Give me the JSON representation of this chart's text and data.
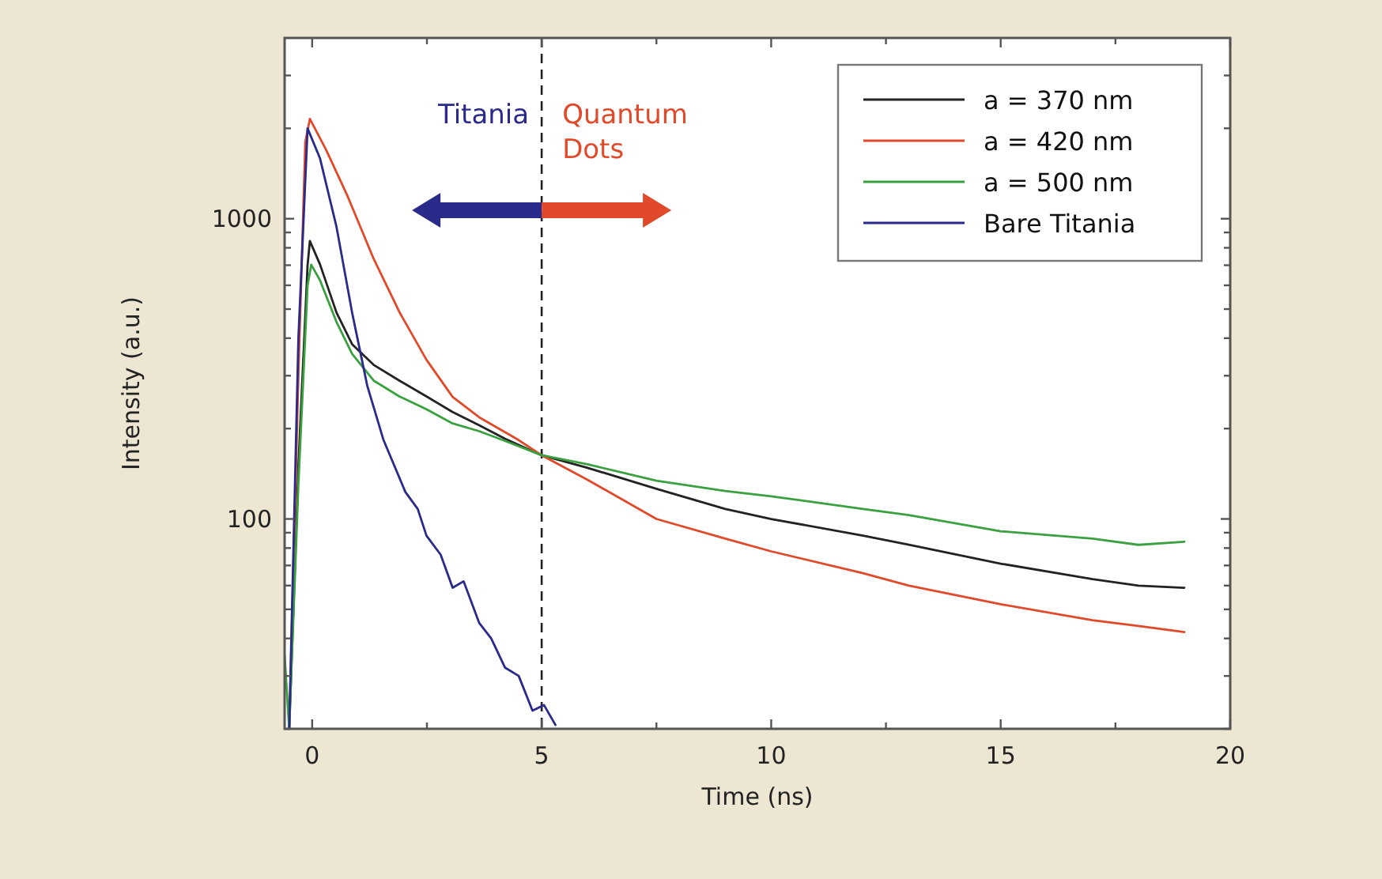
{
  "chart_data": {
    "type": "line",
    "xlabel": "Time (ns)",
    "ylabel": "Intensity (a.u.)",
    "log": "y",
    "xlim": [
      -0.6,
      20
    ],
    "ylim": [
      20,
      4000
    ],
    "xticks": [
      0,
      {
        "value": 2.5,
        "label": null
      },
      5,
      {
        "value": 7.5,
        "label": null
      },
      10,
      {
        "value": 12.5,
        "label": null
      },
      15,
      {
        "value": 17.5,
        "label": null
      },
      20
    ],
    "yticks": [
      {
        "value": 20,
        "label": null
      },
      {
        "value": 30,
        "label": null
      },
      {
        "value": 40,
        "label": null
      },
      {
        "value": 50,
        "label": null
      },
      {
        "value": 60,
        "label": null
      },
      {
        "value": 70,
        "label": null
      },
      {
        "value": 80,
        "label": null
      },
      {
        "value": 90,
        "label": null
      },
      100,
      {
        "value": 200,
        "label": null
      },
      {
        "value": 300,
        "label": null
      },
      {
        "value": 400,
        "label": null
      },
      {
        "value": 500,
        "label": null
      },
      {
        "value": 600,
        "label": null
      },
      {
        "value": 700,
        "label": null
      },
      {
        "value": 800,
        "label": null
      },
      {
        "value": 900,
        "label": null
      },
      1000,
      {
        "value": 2000,
        "label": null
      },
      {
        "value": 3000,
        "label": null
      }
    ],
    "grid": false,
    "legend": "top right",
    "marker": "none",
    "line_style": "solid",
    "ref_lines": [
      {
        "axis": "x",
        "value": 5,
        "color": "#222222",
        "line_style": "dashed"
      }
    ],
    "annotations": [
      "Titania",
      "Quantum Dots"
    ],
    "series": [
      {
        "name": "a = 370 nm",
        "color": "#222222",
        "x": [
          -0.5,
          -0.3,
          -0.1,
          -0.05,
          0.17,
          0.53,
          0.87,
          1.34,
          1.9,
          2.49,
          3.06,
          3.64,
          4.2,
          5,
          6,
          7.5,
          9,
          10,
          12,
          13,
          15,
          17,
          18,
          19
        ],
        "values": [
          20,
          150,
          700,
          843,
          705,
          487,
          382,
          326,
          289,
          256,
          227,
          205,
          185,
          163,
          148,
          126,
          108,
          100,
          88,
          82,
          71,
          63,
          60,
          59
        ]
      },
      {
        "name": "a = 420 nm",
        "color": "#e04a2a",
        "x": [
          -0.5,
          -0.3,
          -0.15,
          -0.05,
          0.3,
          0.76,
          1.34,
          1.9,
          2.49,
          3.06,
          3.64,
          4.45,
          5,
          6,
          7.5,
          9,
          10,
          12,
          13,
          15,
          17,
          18,
          19
        ],
        "values": [
          20,
          300,
          1800,
          2150,
          1700,
          1200,
          735,
          489,
          339,
          255,
          218,
          185,
          163,
          135,
          100,
          86,
          78,
          66,
          60,
          52,
          46,
          44,
          42
        ]
      },
      {
        "name": "a = 500 nm",
        "color": "#3aa040",
        "x": [
          -0.6,
          -0.5,
          -0.3,
          -0.1,
          -0.02,
          0.17,
          0.53,
          0.87,
          1.34,
          1.9,
          2.49,
          3.06,
          3.64,
          4.2,
          5,
          6,
          7.5,
          9,
          10,
          12,
          13,
          15,
          17,
          18,
          19
        ],
        "values": [
          35,
          20,
          130,
          600,
          703,
          624,
          453,
          355,
          289,
          256,
          232,
          208,
          196,
          182,
          163,
          152,
          134,
          124,
          119,
          108,
          103,
          91,
          86,
          82,
          84
        ]
      },
      {
        "name": "Bare Titania",
        "color": "#2a2a8a",
        "x": [
          -0.5,
          -0.3,
          -0.1,
          0.17,
          0.53,
          0.87,
          1.2,
          1.55,
          2.03,
          2.3,
          2.49,
          2.8,
          3.06,
          3.3,
          3.64,
          3.9,
          4.2,
          4.5,
          4.8,
          5.05,
          5.3
        ],
        "values": [
          20,
          400,
          2000,
          1590,
          940,
          487,
          278,
          184,
          123,
          108,
          88,
          76,
          59,
          62,
          45,
          40,
          32,
          30,
          23,
          24,
          20.6
        ]
      }
    ]
  }
}
